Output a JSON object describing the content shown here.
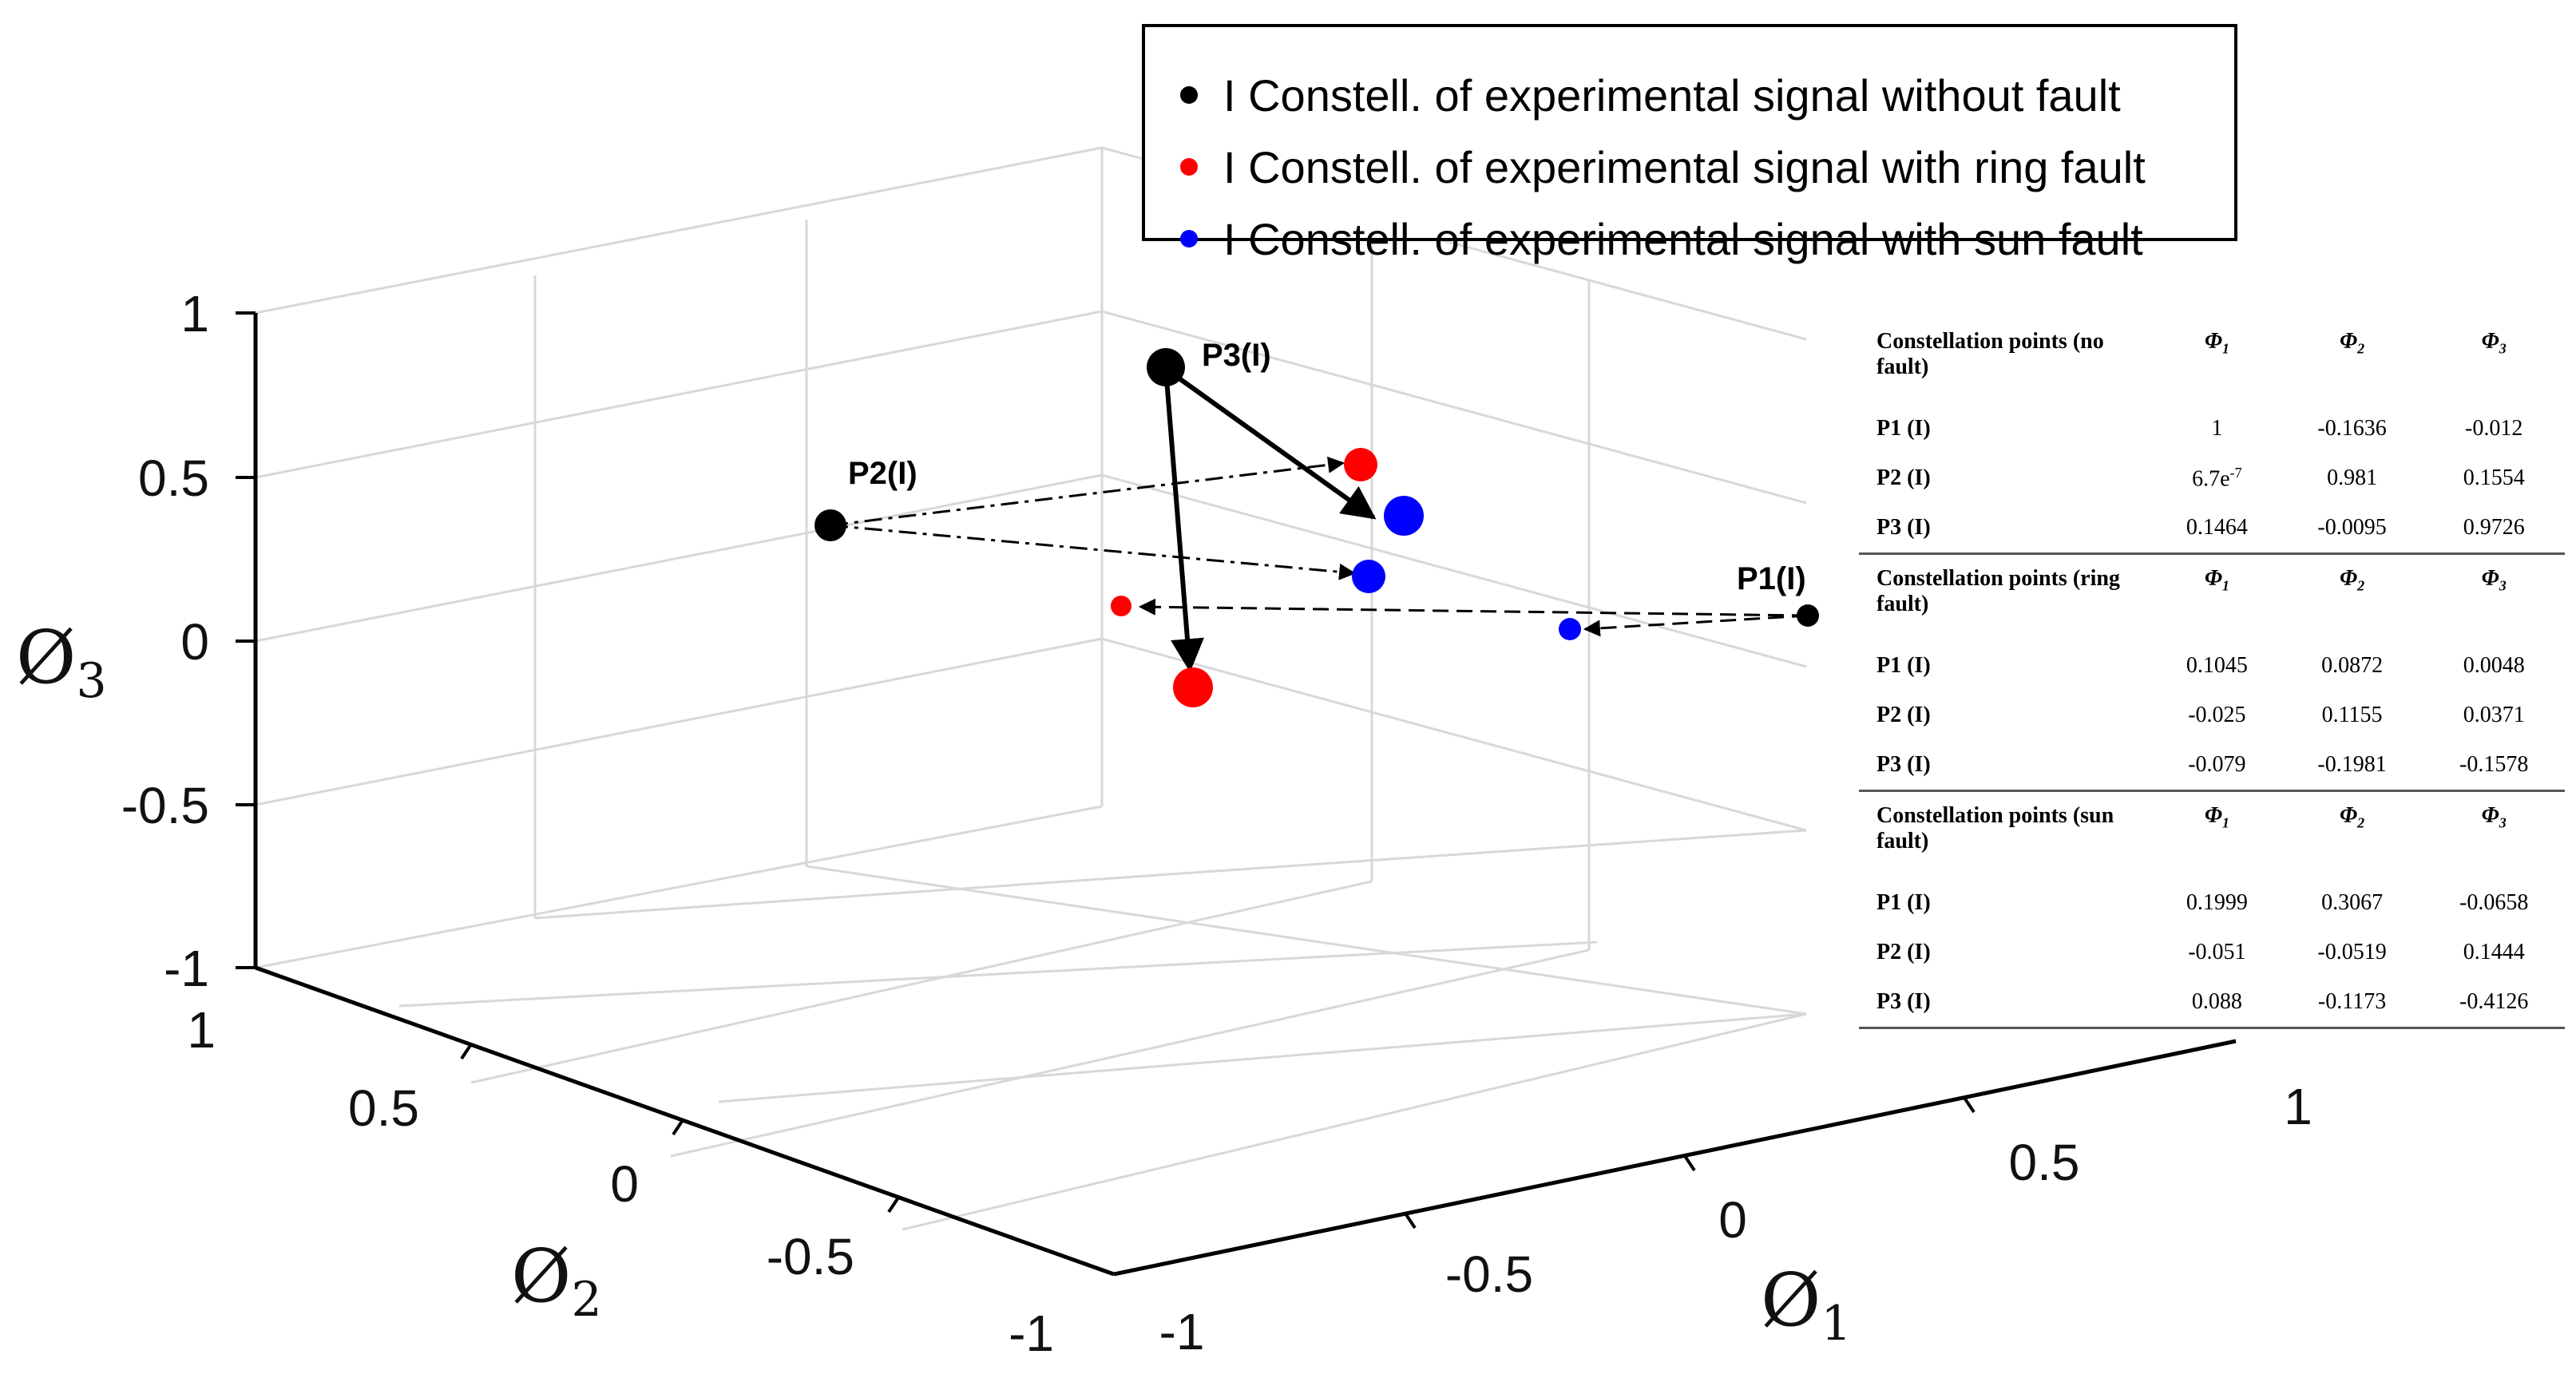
{
  "chart_data": {
    "type": "scatter",
    "dimensions": 3,
    "xlabel": "Ø1",
    "ylabel": "Ø2",
    "zlabel": "Ø3",
    "axis_ranges": {
      "x": [
        -1,
        1
      ],
      "y": [
        -1,
        1
      ],
      "z": [
        -1,
        1
      ]
    },
    "grid": true,
    "x_ticks": [
      "-1",
      "-0.5",
      "0",
      "0.5",
      "1"
    ],
    "y_ticks": [
      "-1",
      "-0.5",
      "0",
      "0.5",
      "1"
    ],
    "z_ticks": [
      "-1",
      "-0.5",
      "0",
      "0.5",
      "1"
    ],
    "legend_position": "top",
    "series": [
      {
        "name": "I Constell. of experimental signal without fault",
        "color": "#000000",
        "points": [
          {
            "label": "P1(I)",
            "x": 1,
            "y": -0.1636,
            "z": -0.012
          },
          {
            "label": "P2(I)",
            "x": 6.7e-07,
            "y": 0.981,
            "z": 0.1554
          },
          {
            "label": "P3(I)",
            "x": 0.1464,
            "y": -0.0095,
            "z": 0.9726
          }
        ]
      },
      {
        "name": "I Constell. of experimental signal with ring fault",
        "color": "#ff0000",
        "points": [
          {
            "label": "P1 (I)",
            "x": 0.1045,
            "y": 0.0872,
            "z": 0.0048
          },
          {
            "label": "P2 (I)",
            "x": -0.025,
            "y": 0.1155,
            "z": 0.0371
          },
          {
            "label": "P3 (I)",
            "x": -0.079,
            "y": -0.1981,
            "z": -0.1578
          }
        ]
      },
      {
        "name": "I Constell. of experimental signal with sun fault",
        "color": "#0000ff",
        "points": [
          {
            "label": "P1 (I)",
            "x": 0.1999,
            "y": 0.3067,
            "z": -0.0658
          },
          {
            "label": "P2 (I)",
            "x": -0.051,
            "y": -0.0519,
            "z": 0.1444
          },
          {
            "label": "P3 (I)",
            "x": 0.088,
            "y": -0.1173,
            "z": -0.4126
          }
        ]
      }
    ],
    "table": {
      "columns": [
        "Φ1",
        "Φ2",
        "Φ3"
      ],
      "groups": [
        {
          "title": "Constellation points (no fault)",
          "rows": [
            {
              "label": "P1 (I)",
              "values": [
                "1",
                "-0.1636",
                "-0.012"
              ]
            },
            {
              "label": "P2 (I)",
              "values": [
                "6.7e-7",
                "0.981",
                "0.1554"
              ]
            },
            {
              "label": "P3 (I)",
              "values": [
                "0.1464",
                "-0.0095",
                "0.9726"
              ]
            }
          ]
        },
        {
          "title": "Constellation points (ring fault)",
          "rows": [
            {
              "label": "P1 (I)",
              "values": [
                "0.1045",
                "0.0872",
                "0.0048"
              ]
            },
            {
              "label": "P2 (I)",
              "values": [
                "-0.025",
                "0.1155",
                "0.0371"
              ]
            },
            {
              "label": "P3 (I)",
              "values": [
                "-0.079",
                "-0.1981",
                "-0.1578"
              ]
            }
          ]
        },
        {
          "title": "Constellation points (sun fault)",
          "rows": [
            {
              "label": "P1 (I)",
              "values": [
                "0.1999",
                "0.3067",
                "-0.0658"
              ]
            },
            {
              "label": "P2 (I)",
              "values": [
                "-0.051",
                "-0.0519",
                "0.1444"
              ]
            },
            {
              "label": "P3 (I)",
              "values": [
                "0.088",
                "-0.1173",
                "-0.4126"
              ]
            }
          ]
        }
      ]
    }
  }
}
